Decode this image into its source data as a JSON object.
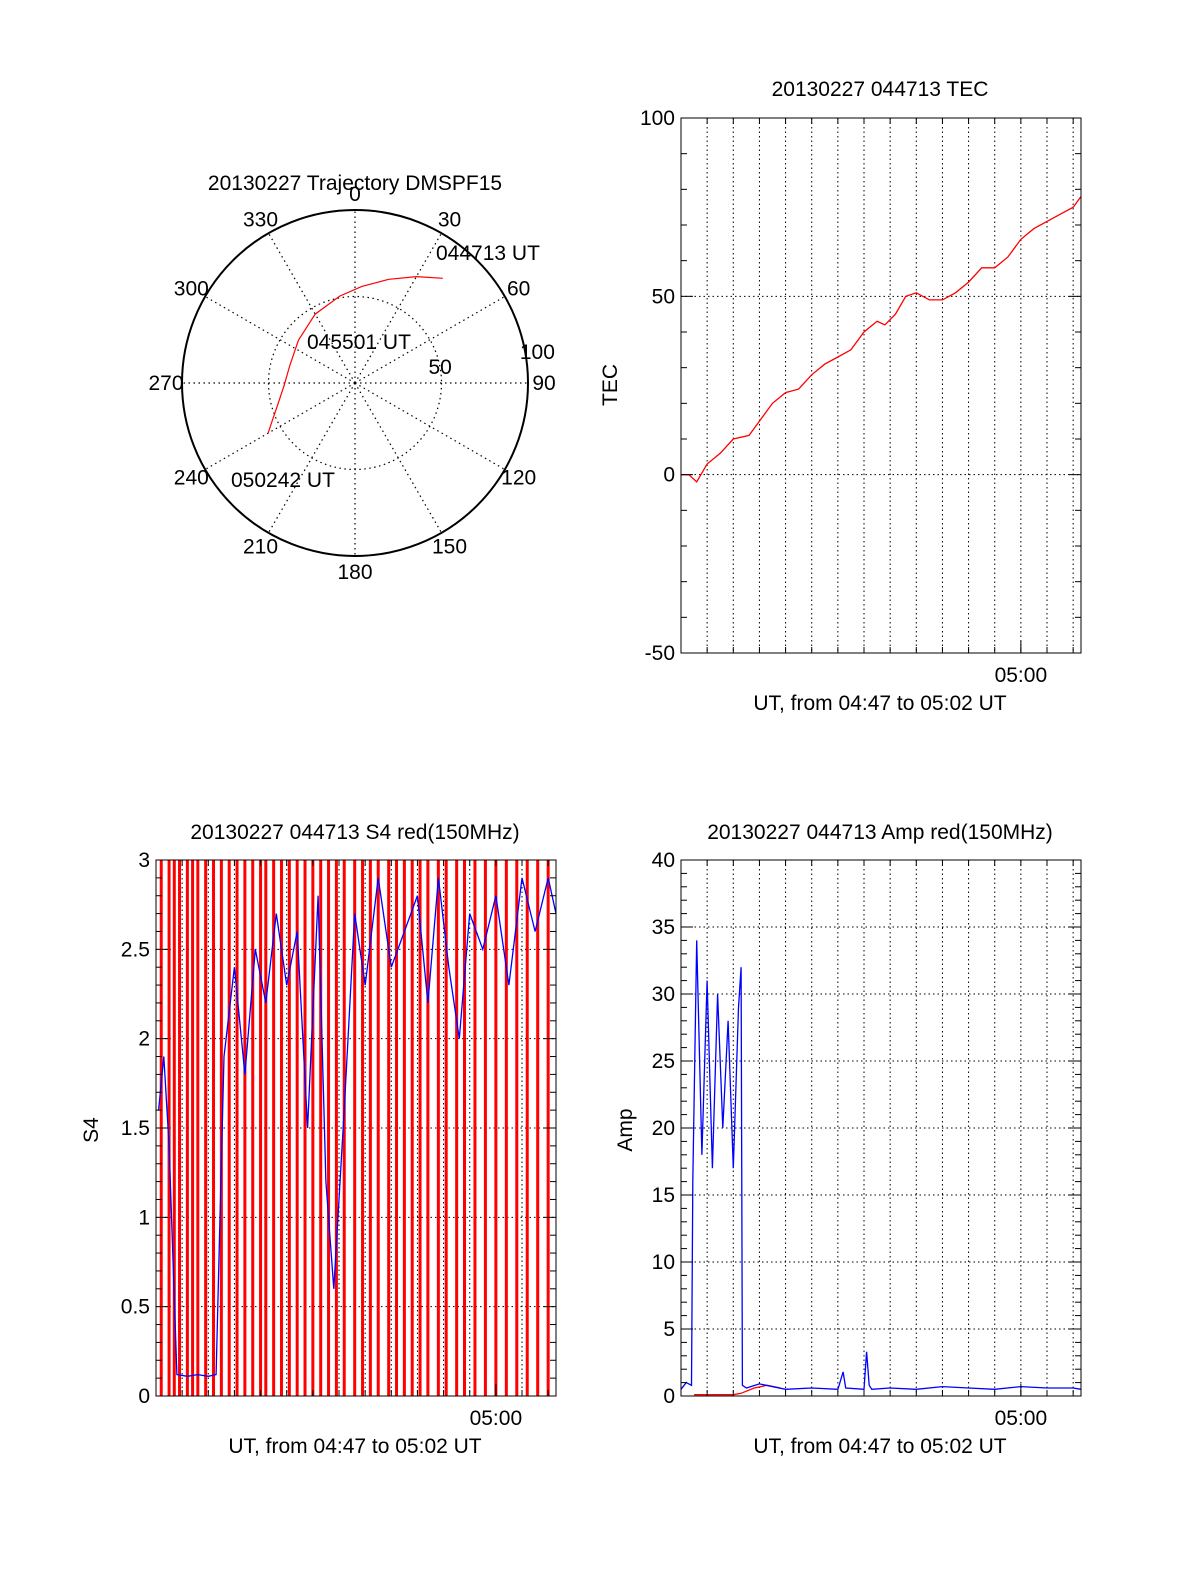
{
  "colors": {
    "red": "#ff0000",
    "blue": "#0000ff",
    "axis": "#000000",
    "grid": "#000000"
  },
  "chart_data": [
    {
      "id": "trajectory",
      "type": "polar",
      "title": "20130227 Trajectory DMSPF15",
      "angle_ticks": [
        "0",
        "30",
        "60",
        "90",
        "120",
        "150",
        "180",
        "210",
        "240",
        "270",
        "300",
        "330"
      ],
      "angle_tick_values": [
        0,
        30,
        60,
        90,
        120,
        150,
        180,
        210,
        240,
        270,
        300,
        330
      ],
      "radial_ticks": [
        "50",
        "100"
      ],
      "radial_tick_values": [
        50,
        100
      ],
      "radial_max": 100,
      "grid": true,
      "annotations": [
        "044713 UT",
        "045501 UT",
        "050242 UT"
      ],
      "track": {
        "color": "red",
        "azimuth_deg": [
          40,
          30,
          18,
          4,
          350,
          330,
          307,
          285,
          268,
          255,
          245,
          240
        ],
        "zenith": [
          79,
          71,
          63,
          56,
          51,
          46,
          41,
          39,
          41,
          46,
          53,
          58
        ]
      }
    },
    {
      "id": "tec",
      "type": "line",
      "title": "20130227 044713 TEC",
      "xlabel": "UT, from 04:47 to 05:02 UT",
      "ylabel": "TEC",
      "x_tick_labels": [
        "05:00"
      ],
      "x_tick_values": [
        13.0
      ],
      "xlim": [
        0,
        15.3
      ],
      "ylim": [
        -50,
        100
      ],
      "y_tick_labels": [
        "-50",
        "0",
        "50",
        "100"
      ],
      "y_tick_values": [
        -50,
        0,
        50,
        100
      ],
      "grid": true,
      "series": [
        {
          "color": "red",
          "x": [
            0,
            0.3,
            0.6,
            1.0,
            1.5,
            2.0,
            2.6,
            3.0,
            3.5,
            4.0,
            4.5,
            5.0,
            5.5,
            6.0,
            6.5,
            7.0,
            7.5,
            7.8,
            8.2,
            8.6,
            9.0,
            9.5,
            10.0,
            10.5,
            11.0,
            11.5,
            12.0,
            12.5,
            13.0,
            13.5,
            14.0,
            14.5,
            15.0,
            15.3
          ],
          "y": [
            0,
            0,
            -2,
            3,
            6,
            10,
            11,
            15,
            20,
            23,
            24,
            28,
            31,
            33,
            35,
            40,
            43,
            42,
            45,
            50,
            51,
            49,
            49,
            51,
            54,
            58,
            58,
            61,
            66,
            69,
            71,
            73,
            75,
            78
          ]
        }
      ]
    },
    {
      "id": "s4",
      "type": "line",
      "title": "20130227 044713 S4 red(150MHz)",
      "xlabel": "UT, from 04:47 to 05:02 UT",
      "ylabel": "S4",
      "x_tick_labels": [
        "05:00"
      ],
      "x_tick_values": [
        13.0
      ],
      "xlim": [
        0,
        15.3
      ],
      "ylim": [
        0,
        3
      ],
      "y_tick_labels": [
        "0",
        "0.5",
        "1",
        "1.5",
        "2",
        "2.5",
        "3"
      ],
      "y_tick_values": [
        0,
        0.5,
        1,
        1.5,
        2,
        2.5,
        3
      ],
      "grid": true,
      "series": [
        {
          "color": "red",
          "style": "dense vertical spikes from 0 to 3",
          "x": [
            0.2,
            0.5,
            0.7,
            0.9,
            1.2,
            1.4,
            1.6,
            1.9,
            2.2,
            2.5,
            2.8,
            3.1,
            3.4,
            3.7,
            4.0,
            4.2,
            4.5,
            4.8,
            5.1,
            5.4,
            5.7,
            6.0,
            6.3,
            6.6,
            6.9,
            7.2,
            7.6,
            7.9,
            8.2,
            8.5,
            8.9,
            9.2,
            9.5,
            9.8,
            10.1,
            10.4,
            10.8,
            11.1,
            11.5,
            11.8,
            12.2,
            12.6,
            13.0,
            13.4,
            13.8,
            14.2,
            14.6,
            15.0
          ],
          "y": [
            3,
            3,
            3,
            3,
            3,
            3,
            3,
            3,
            3,
            3,
            3,
            3,
            3,
            3,
            3,
            3,
            3,
            3,
            3,
            3,
            3,
            3,
            3,
            3,
            3,
            3,
            3,
            3,
            3,
            3,
            3,
            3,
            3,
            3,
            3,
            3,
            3,
            3,
            3,
            3,
            3,
            3,
            3,
            3,
            3,
            3,
            3,
            3
          ]
        },
        {
          "color": "blue",
          "x": [
            0.1,
            0.3,
            0.5,
            0.8,
            1.2,
            1.6,
            2.0,
            2.3,
            2.6,
            3.0,
            3.4,
            3.8,
            4.2,
            4.6,
            5.0,
            5.4,
            5.8,
            6.2,
            6.5,
            6.8,
            7.2,
            7.6,
            8.0,
            8.5,
            9.0,
            9.5,
            10.0,
            10.4,
            10.8,
            11.2,
            11.6,
            12.0,
            12.5,
            13.0,
            13.5,
            14.0,
            14.5,
            15.0,
            15.3
          ],
          "y": [
            1.6,
            1.9,
            1.4,
            0.12,
            0.11,
            0.12,
            0.11,
            0.12,
            1.9,
            2.4,
            1.8,
            2.5,
            2.2,
            2.7,
            2.3,
            2.6,
            1.5,
            2.8,
            1.2,
            0.6,
            1.6,
            2.7,
            2.3,
            2.9,
            2.4,
            2.6,
            2.8,
            2.2,
            2.9,
            2.4,
            2.0,
            2.7,
            2.5,
            2.8,
            2.3,
            2.9,
            2.6,
            2.9,
            2.7
          ]
        }
      ]
    },
    {
      "id": "amp",
      "type": "line",
      "title": "20130227 044713 Amp red(150MHz)",
      "xlabel": "UT, from 04:47 to 05:02 UT",
      "ylabel": "Amp",
      "x_tick_labels": [
        "05:00"
      ],
      "x_tick_values": [
        13.0
      ],
      "xlim": [
        0,
        15.3
      ],
      "ylim": [
        0,
        40
      ],
      "y_tick_labels": [
        "0",
        "5",
        "10",
        "15",
        "20",
        "25",
        "30",
        "35",
        "40"
      ],
      "y_tick_values": [
        0,
        5,
        10,
        15,
        20,
        25,
        30,
        35,
        40
      ],
      "grid": true,
      "series": [
        {
          "color": "red",
          "x": [
            0.5,
            1.0,
            1.5,
            2.0,
            2.3,
            2.8,
            3.3,
            3.8
          ],
          "y": [
            0.1,
            0.1,
            0.1,
            0.1,
            0.2,
            0.6,
            0.8,
            0.6
          ]
        },
        {
          "color": "blue",
          "x": [
            0,
            0.2,
            0.4,
            0.45,
            0.6,
            0.8,
            1.0,
            1.2,
            1.4,
            1.6,
            1.8,
            2.0,
            2.2,
            2.3,
            2.35,
            2.5,
            3.0,
            4.0,
            5.0,
            6.0,
            6.2,
            6.3,
            7.0,
            7.1,
            7.2,
            7.3,
            8.0,
            9.0,
            10.0,
            11.0,
            12.0,
            13.0,
            14.0,
            15.0,
            15.3
          ],
          "y": [
            0.5,
            1.0,
            0.8,
            16,
            34,
            18,
            31,
            17,
            30,
            20,
            28,
            17,
            29,
            32,
            0.8,
            0.6,
            0.9,
            0.5,
            0.6,
            0.5,
            1.8,
            0.6,
            0.5,
            3.3,
            0.8,
            0.5,
            0.6,
            0.5,
            0.7,
            0.6,
            0.5,
            0.7,
            0.6,
            0.6,
            0.5
          ]
        }
      ]
    }
  ]
}
